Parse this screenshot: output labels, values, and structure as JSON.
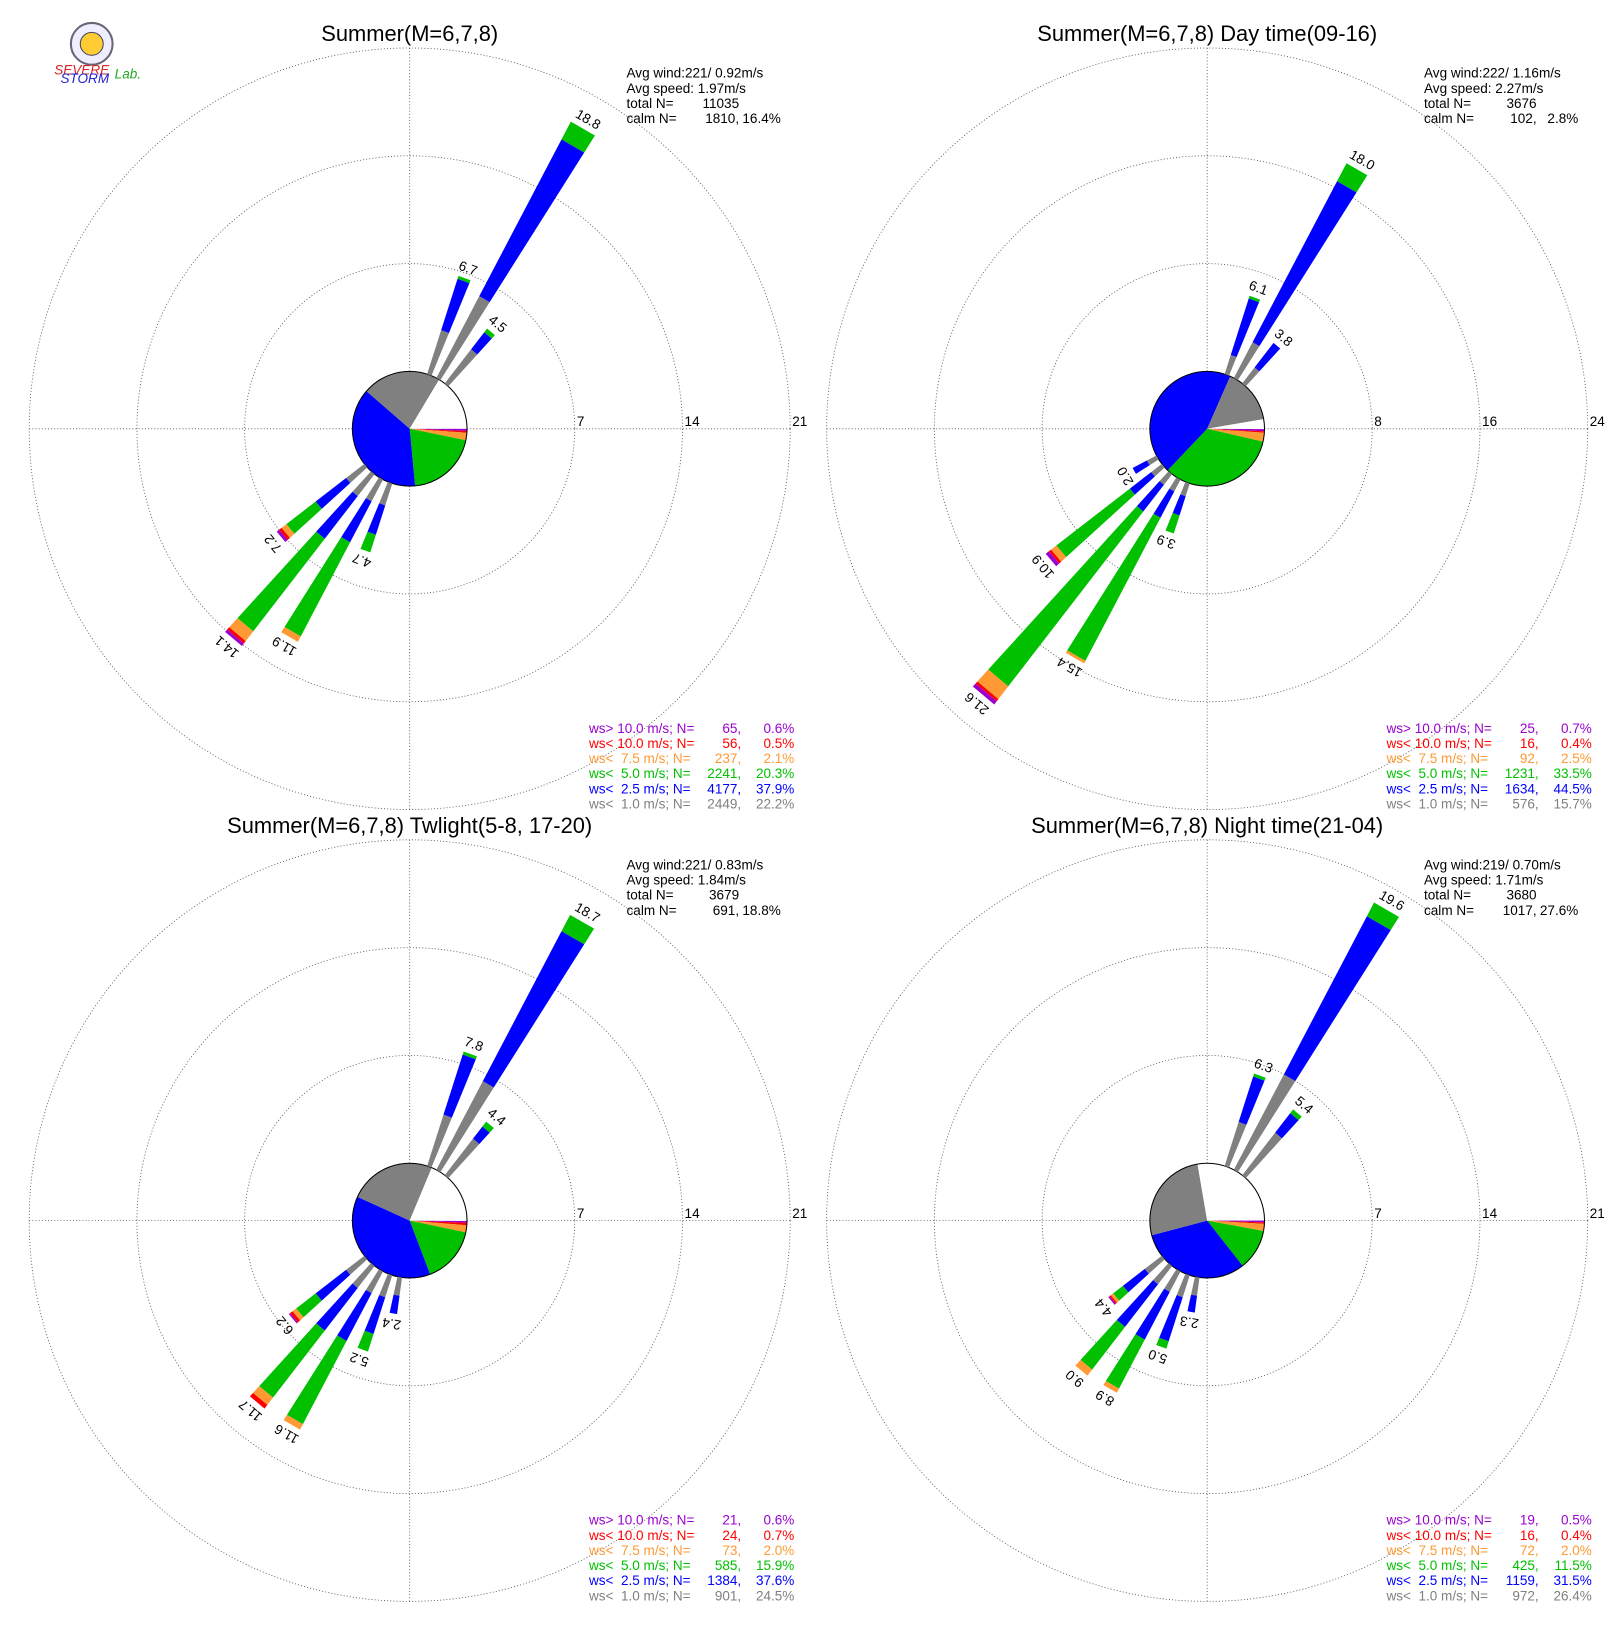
{
  "logo": {
    "top": "SEVERE",
    "bottom": "STORM",
    "right": "Lab."
  },
  "chart_data": [
    {
      "type": "windrose",
      "title": "Summer(M=6,7,8)",
      "avg_wind": "Avg wind:221/ 0.92m/s",
      "avg_speed": "Avg speed: 1.97m/s",
      "total_label": "total N=",
      "total": 11035,
      "calm_label": "calm N=",
      "calm_n": {
        "value": 1810,
        "label": "1810,"
      },
      "calm_percent": {
        "value": 16.4,
        "label": "16.4%"
      },
      "calm_color": "#ffffff",
      "rlim": [
        0,
        21
      ],
      "rticks": [
        7,
        14,
        21
      ],
      "legend": [
        {
          "name": "ws> 10.0 m/s; N=",
          "color": "#9a00d0",
          "n": {
            "value": 65,
            "label": "65,"
          },
          "percent": {
            "value": 0.6,
            "label": "0.6%"
          }
        },
        {
          "name": "ws< 10.0 m/s; N=",
          "color": "#ff0000",
          "n": {
            "value": 56,
            "label": "56,"
          },
          "percent": {
            "value": 0.5,
            "label": "0.5%"
          }
        },
        {
          "name": "ws<  7.5 m/s; N=",
          "color": "#ff9933",
          "n": {
            "value": 237,
            "label": "237,"
          },
          "percent": {
            "value": 2.1,
            "label": "2.1%"
          }
        },
        {
          "name": "ws<  5.0 m/s; N=",
          "color": "#00c000",
          "n": {
            "value": 2241,
            "label": "2241,"
          },
          "percent": {
            "value": 20.3,
            "label": "20.3%"
          }
        },
        {
          "name": "ws<  2.5 m/s; N=",
          "color": "#0000ff",
          "n": {
            "value": 4177,
            "label": "4177,"
          },
          "percent": {
            "value": 37.9,
            "label": "37.9%"
          }
        },
        {
          "name": "ws<  1.0 m/s; N=",
          "color": "#808080",
          "n": {
            "value": 2449,
            "label": "2449,"
          },
          "percent": {
            "value": 22.2,
            "label": "22.2%"
          }
        }
      ],
      "spokes": [
        {
          "direction": 30,
          "label": "18.8",
          "segments": [
            0,
            0,
            0,
            1.3,
            11.5,
            6
          ]
        },
        {
          "direction": 20,
          "label": "6.7",
          "segments": [
            0,
            0,
            0,
            0.2,
            3.5,
            3
          ]
        },
        {
          "direction": 40,
          "label": "4.5",
          "segments": [
            0,
            0,
            0,
            0.3,
            1.4,
            2.8
          ]
        },
        {
          "direction": 230,
          "label": "7.2",
          "segments": [
            0.2,
            0.2,
            0.4,
            2.4,
            2.5,
            1.5
          ]
        },
        {
          "direction": 220,
          "label": "14.1",
          "segments": [
            0.2,
            0.2,
            0.8,
            7.6,
            3.5,
            1.8
          ]
        },
        {
          "direction": 210,
          "label": "11.9",
          "segments": [
            0,
            0,
            0.4,
            6.9,
            3,
            1.6
          ]
        },
        {
          "direction": 200,
          "label": "4.7",
          "segments": [
            0,
            0,
            0,
            1.2,
            2,
            1.5
          ]
        }
      ]
    },
    {
      "type": "windrose",
      "title": "Summer(M=6,7,8) Day time(09-16)",
      "avg_wind": "Avg wind:222/ 1.16m/s",
      "avg_speed": "Avg speed: 2.27m/s",
      "total_label": "total N=",
      "total": 3676,
      "calm_label": "calm N=",
      "calm_n": {
        "value": 102,
        "label": "102,"
      },
      "calm_percent": {
        "value": 2.8,
        "label": "2.8%"
      },
      "calm_color": "#ffffff",
      "rlim": [
        0,
        24
      ],
      "rticks": [
        8,
        16,
        24
      ],
      "legend": [
        {
          "name": "ws> 10.0 m/s; N=",
          "color": "#9a00d0",
          "n": {
            "value": 25,
            "label": "25,"
          },
          "percent": {
            "value": 0.7,
            "label": "0.7%"
          }
        },
        {
          "name": "ws< 10.0 m/s; N=",
          "color": "#ff0000",
          "n": {
            "value": 16,
            "label": "16,"
          },
          "percent": {
            "value": 0.4,
            "label": "0.4%"
          }
        },
        {
          "name": "ws<  7.5 m/s; N=",
          "color": "#ff9933",
          "n": {
            "value": 92,
            "label": "92,"
          },
          "percent": {
            "value": 2.5,
            "label": "2.5%"
          }
        },
        {
          "name": "ws<  5.0 m/s; N=",
          "color": "#00c000",
          "n": {
            "value": 1231,
            "label": "1231,"
          },
          "percent": {
            "value": 33.5,
            "label": "33.5%"
          }
        },
        {
          "name": "ws<  2.5 m/s; N=",
          "color": "#0000ff",
          "n": {
            "value": 1634,
            "label": "1634,"
          },
          "percent": {
            "value": 44.5,
            "label": "44.5%"
          }
        },
        {
          "name": "ws<  1.0 m/s; N=",
          "color": "#808080",
          "n": {
            "value": 576,
            "label": "576,"
          },
          "percent": {
            "value": 15.7,
            "label": "15.7%"
          }
        }
      ],
      "spokes": [
        {
          "direction": 30,
          "label": "18.0",
          "segments": [
            0,
            0,
            0,
            1.5,
            13.5,
            3
          ]
        },
        {
          "direction": 20,
          "label": "6.1",
          "segments": [
            0,
            0,
            0,
            0.2,
            4.4,
            1.5
          ]
        },
        {
          "direction": 40,
          "label": "3.8",
          "segments": [
            0,
            0,
            0,
            0,
            2.3,
            1.5
          ]
        },
        {
          "direction": 240,
          "label": "2.0",
          "segments": [
            0,
            0,
            0,
            0,
            1.2,
            0.8
          ]
        },
        {
          "direction": 230,
          "label": "10.9",
          "segments": [
            0.3,
            0.2,
            0.5,
            6.9,
            2,
            1
          ]
        },
        {
          "direction": 220,
          "label": "21.6",
          "segments": [
            0.3,
            0.2,
            1.2,
            16.4,
            2.5,
            1
          ]
        },
        {
          "direction": 210,
          "label": "15.4",
          "segments": [
            0,
            0,
            0.2,
            12,
            2.2,
            1
          ]
        },
        {
          "direction": 200,
          "label": "3.9",
          "segments": [
            0,
            0,
            0,
            1.4,
            1.5,
            1
          ]
        }
      ]
    },
    {
      "type": "windrose",
      "title": "Summer(M=6,7,8) Twlight(5-8, 17-20)",
      "avg_wind": "Avg wind:221/ 0.83m/s",
      "avg_speed": "Avg speed: 1.84m/s",
      "total_label": "total N=",
      "total": 3679,
      "calm_label": "calm N=",
      "calm_n": {
        "value": 691,
        "label": "691,"
      },
      "calm_percent": {
        "value": 18.8,
        "label": "18.8%"
      },
      "calm_color": "#ffffff",
      "rlim": [
        0,
        21
      ],
      "rticks": [
        7,
        14,
        21
      ],
      "legend": [
        {
          "name": "ws> 10.0 m/s; N=",
          "color": "#9a00d0",
          "n": {
            "value": 21,
            "label": "21,"
          },
          "percent": {
            "value": 0.6,
            "label": "0.6%"
          }
        },
        {
          "name": "ws< 10.0 m/s; N=",
          "color": "#ff0000",
          "n": {
            "value": 24,
            "label": "24,"
          },
          "percent": {
            "value": 0.7,
            "label": "0.7%"
          }
        },
        {
          "name": "ws<  7.5 m/s; N=",
          "color": "#ff9933",
          "n": {
            "value": 73,
            "label": "73,"
          },
          "percent": {
            "value": 2,
            "label": "2.0%"
          }
        },
        {
          "name": "ws<  5.0 m/s; N=",
          "color": "#00c000",
          "n": {
            "value": 585,
            "label": "585,"
          },
          "percent": {
            "value": 15.9,
            "label": "15.9%"
          }
        },
        {
          "name": "ws<  2.5 m/s; N=",
          "color": "#0000ff",
          "n": {
            "value": 1384,
            "label": "1384,"
          },
          "percent": {
            "value": 37.6,
            "label": "37.6%"
          }
        },
        {
          "name": "ws<  1.0 m/s; N=",
          "color": "#808080",
          "n": {
            "value": 901,
            "label": "901,"
          },
          "percent": {
            "value": 24.5,
            "label": "24.5%"
          }
        }
      ],
      "spokes": [
        {
          "direction": 30,
          "label": "18.7",
          "segments": [
            0,
            0,
            0,
            1.2,
            11,
            6.5
          ]
        },
        {
          "direction": 20,
          "label": "7.8",
          "segments": [
            0,
            0,
            0,
            0.2,
            4.1,
            3.5
          ]
        },
        {
          "direction": 40,
          "label": "4.4",
          "segments": [
            0,
            0,
            0,
            0.4,
            1,
            3
          ]
        },
        {
          "direction": 230,
          "label": "6.2",
          "segments": [
            0.1,
            0.2,
            0.3,
            1.6,
            2.5,
            1.5
          ]
        },
        {
          "direction": 220,
          "label": "11.7",
          "segments": [
            0,
            0.3,
            0.6,
            5.5,
            3.5,
            1.8
          ]
        },
        {
          "direction": 210,
          "label": "11.6",
          "segments": [
            0,
            0,
            0.4,
            6.1,
            3.5,
            1.6
          ]
        },
        {
          "direction": 200,
          "label": "5.2",
          "segments": [
            0,
            0,
            0,
            1.2,
            2.5,
            1.5
          ]
        },
        {
          "direction": 190,
          "label": "2.4",
          "segments": [
            0,
            0,
            0,
            0,
            1.2,
            1.2
          ]
        }
      ]
    },
    {
      "type": "windrose",
      "title": "Summer(M=6,7,8) Night time(21-04)",
      "avg_wind": "Avg wind:219/ 0.70m/s",
      "avg_speed": "Avg speed: 1.71m/s",
      "total_label": "total N=",
      "total": 3680,
      "calm_label": "calm N=",
      "calm_n": {
        "value": 1017,
        "label": "1017,"
      },
      "calm_percent": {
        "value": 27.6,
        "label": "27.6%"
      },
      "calm_color": "#ffffff",
      "rlim": [
        0,
        21
      ],
      "rticks": [
        7,
        14,
        21
      ],
      "legend": [
        {
          "name": "ws> 10.0 m/s; N=",
          "color": "#9a00d0",
          "n": {
            "value": 19,
            "label": "19,"
          },
          "percent": {
            "value": 0.5,
            "label": "0.5%"
          }
        },
        {
          "name": "ws< 10.0 m/s; N=",
          "color": "#ff0000",
          "n": {
            "value": 16,
            "label": "16,"
          },
          "percent": {
            "value": 0.4,
            "label": "0.4%"
          }
        },
        {
          "name": "ws<  7.5 m/s; N=",
          "color": "#ff9933",
          "n": {
            "value": 72,
            "label": "72,"
          },
          "percent": {
            "value": 2,
            "label": "2.0%"
          }
        },
        {
          "name": "ws<  5.0 m/s; N=",
          "color": "#00c000",
          "n": {
            "value": 425,
            "label": "425,"
          },
          "percent": {
            "value": 11.5,
            "label": "11.5%"
          }
        },
        {
          "name": "ws<  2.5 m/s; N=",
          "color": "#0000ff",
          "n": {
            "value": 1159,
            "label": "1159,"
          },
          "percent": {
            "value": 31.5,
            "label": "31.5%"
          }
        },
        {
          "name": "ws<  1.0 m/s; N=",
          "color": "#808080",
          "n": {
            "value": 972,
            "label": "972,"
          },
          "percent": {
            "value": 26.4,
            "label": "26.4%"
          }
        }
      ],
      "spokes": [
        {
          "direction": 30,
          "label": "19.6",
          "segments": [
            0,
            0,
            0,
            1,
            11.6,
            7
          ]
        },
        {
          "direction": 20,
          "label": "6.3",
          "segments": [
            0,
            0,
            0,
            0.2,
            3.1,
            3
          ]
        },
        {
          "direction": 40,
          "label": "5.4",
          "segments": [
            0,
            0,
            0,
            0.3,
            1.6,
            3.5
          ]
        },
        {
          "direction": 230,
          "label": "4.4",
          "segments": [
            0.1,
            0.1,
            0.2,
            0.8,
            1.8,
            1.4
          ]
        },
        {
          "direction": 220,
          "label": "9.0",
          "segments": [
            0,
            0,
            0.5,
            3.5,
            3.5,
            1.5
          ]
        },
        {
          "direction": 210,
          "label": "8.9",
          "segments": [
            0,
            0,
            0.3,
            3.6,
            3.5,
            1.5
          ]
        },
        {
          "direction": 200,
          "label": "5.0",
          "segments": [
            0,
            0,
            0,
            0.5,
            3,
            1.5
          ]
        },
        {
          "direction": 190,
          "label": "2.3",
          "segments": [
            0,
            0,
            0,
            0,
            1.1,
            1.2
          ]
        }
      ]
    }
  ]
}
